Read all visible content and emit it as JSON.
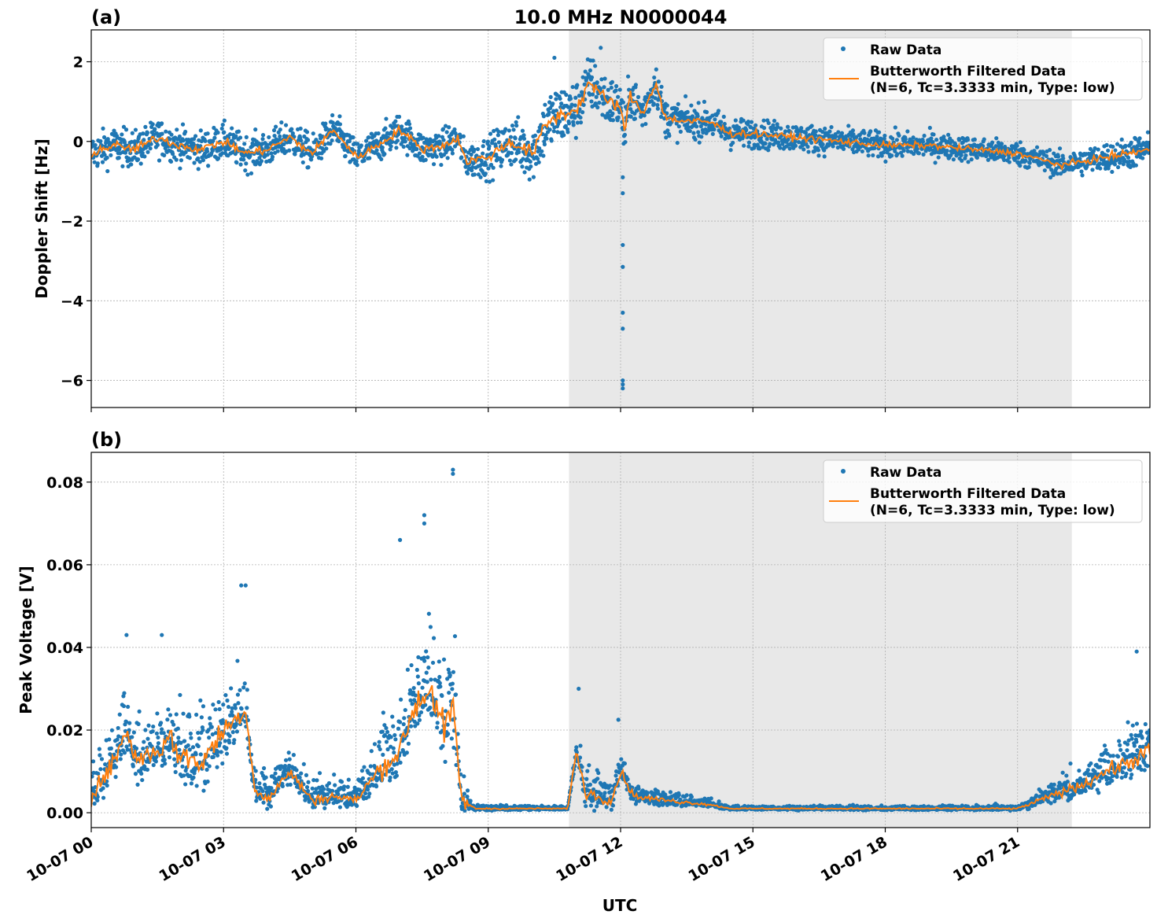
{
  "title": "10.0 MHz N0000044",
  "xlabel": "UTC",
  "x_tick_labels": [
    "10-07 00",
    "10-07 03",
    "10-07 06",
    "10-07 09",
    "10-07 12",
    "10-07 15",
    "10-07 18",
    "10-07 21"
  ],
  "x_ticks_hours": [
    0,
    3,
    6,
    9,
    12,
    15,
    18,
    21
  ],
  "xlim_hours": [
    0,
    24
  ],
  "shaded_region_hours": [
    10.83,
    22.23
  ],
  "legend": {
    "raw": "Raw Data",
    "filtered_line1": "Butterworth Filtered Data",
    "filtered_line2": "(N=6, Tc=3.3333 min, Type: low)"
  },
  "colors": {
    "raw": "#1f77b4",
    "filtered": "#ff7f0e",
    "shade": "#e8e8e8",
    "grid": "#b0b0b0"
  },
  "chart_data": [
    {
      "type": "scatter+line",
      "panel_label": "(a)",
      "ylabel": "Doppler Shift [Hz]",
      "ylim": [
        -6.68,
        2.8
      ],
      "y_ticks": [
        2,
        0,
        -2,
        -4,
        -6
      ],
      "y_tick_labels": [
        "2",
        "0",
        "−2",
        "−4",
        "−6"
      ],
      "filtered": {
        "x": [
          0,
          0.5,
          1,
          1.5,
          2,
          2.5,
          3,
          3.5,
          4,
          4.5,
          5,
          5.5,
          6,
          6.5,
          7,
          7.5,
          8,
          8.3,
          8.5,
          9,
          9.5,
          10,
          10.3,
          10.5,
          11,
          11.3,
          11.7,
          12,
          12.1,
          12.2,
          12.5,
          12.8,
          13,
          13.5,
          14,
          14.5,
          15,
          16,
          17,
          18,
          19,
          20,
          21,
          22,
          23,
          24
        ],
        "y": [
          -0.3,
          -0.1,
          -0.2,
          0.1,
          -0.1,
          -0.2,
          0.0,
          -0.3,
          -0.2,
          0.1,
          -0.3,
          0.3,
          -0.4,
          -0.1,
          0.3,
          -0.2,
          -0.1,
          0.1,
          -0.5,
          -0.4,
          0.0,
          -0.3,
          0.4,
          0.6,
          0.8,
          1.5,
          1.0,
          0.9,
          0.1,
          1.2,
          0.7,
          1.5,
          0.6,
          0.5,
          0.5,
          0.2,
          0.2,
          0.1,
          0.0,
          -0.1,
          -0.1,
          -0.2,
          -0.3,
          -0.6,
          -0.4,
          -0.2
        ]
      },
      "raw_spread": {
        "x": [
          0,
          8.5,
          9.5,
          10.5,
          11,
          12,
          13,
          14,
          15,
          20,
          22,
          24
        ],
        "y": [
          0.45,
          0.4,
          0.6,
          0.8,
          0.7,
          0.6,
          0.45,
          0.4,
          0.35,
          0.3,
          0.3,
          0.4
        ]
      },
      "raw_outliers": {
        "x": [
          12.05,
          12.05,
          12.05,
          12.05,
          12.05,
          12.05,
          12.05,
          12.05,
          12.05,
          11.55,
          10.5
        ],
        "y": [
          -0.9,
          -1.3,
          -2.6,
          -3.15,
          -4.3,
          -4.7,
          -6.0,
          -6.1,
          -6.2,
          2.35,
          2.1
        ]
      }
    },
    {
      "type": "scatter+line",
      "panel_label": "(b)",
      "ylabel": "Peak Voltage [V]",
      "ylim": [
        -0.0036,
        0.0872
      ],
      "y_ticks": [
        0,
        0.02,
        0.04,
        0.06,
        0.08
      ],
      "y_tick_labels": [
        "0.00",
        "0.02",
        "0.04",
        "0.06",
        "0.08"
      ],
      "filtered": {
        "x": [
          0,
          0.5,
          0.8,
          1,
          1.5,
          1.8,
          2,
          2.5,
          3,
          3.5,
          3.7,
          4,
          4.5,
          5,
          5.5,
          6,
          6.5,
          7,
          7.3,
          7.5,
          7.7,
          8,
          8.2,
          8.4,
          8.7,
          10.8,
          11,
          11.2,
          11.8,
          12,
          12.3,
          13,
          14,
          14.5,
          21,
          22,
          22.5,
          23,
          23.5,
          24
        ],
        "y": [
          0.004,
          0.012,
          0.02,
          0.013,
          0.015,
          0.018,
          0.014,
          0.012,
          0.02,
          0.025,
          0.006,
          0.003,
          0.01,
          0.003,
          0.004,
          0.003,
          0.01,
          0.015,
          0.025,
          0.028,
          0.03,
          0.02,
          0.025,
          0.003,
          0.001,
          0.001,
          0.015,
          0.005,
          0.003,
          0.01,
          0.004,
          0.003,
          0.002,
          0.001,
          0.001,
          0.005,
          0.007,
          0.01,
          0.012,
          0.015
        ]
      },
      "raw_spread": {
        "x": [
          0,
          3,
          3.7,
          6,
          7,
          8.3,
          8.6,
          10.8,
          11.2,
          12.5,
          14.5,
          21,
          22,
          24
        ],
        "y": [
          0.008,
          0.014,
          0.006,
          0.004,
          0.014,
          0.016,
          0.001,
          0.0005,
          0.006,
          0.003,
          0.0006,
          0.0008,
          0.004,
          0.009
        ]
      },
      "raw_outliers": {
        "x": [
          8.2,
          8.2,
          7.55,
          7.55,
          7.0,
          3.4,
          3.5,
          0.8,
          1.6,
          11.05,
          11.95,
          23.7
        ],
        "y": [
          0.083,
          0.082,
          0.072,
          0.07,
          0.066,
          0.055,
          0.055,
          0.043,
          0.043,
          0.03,
          0.0225,
          0.039
        ]
      }
    }
  ]
}
